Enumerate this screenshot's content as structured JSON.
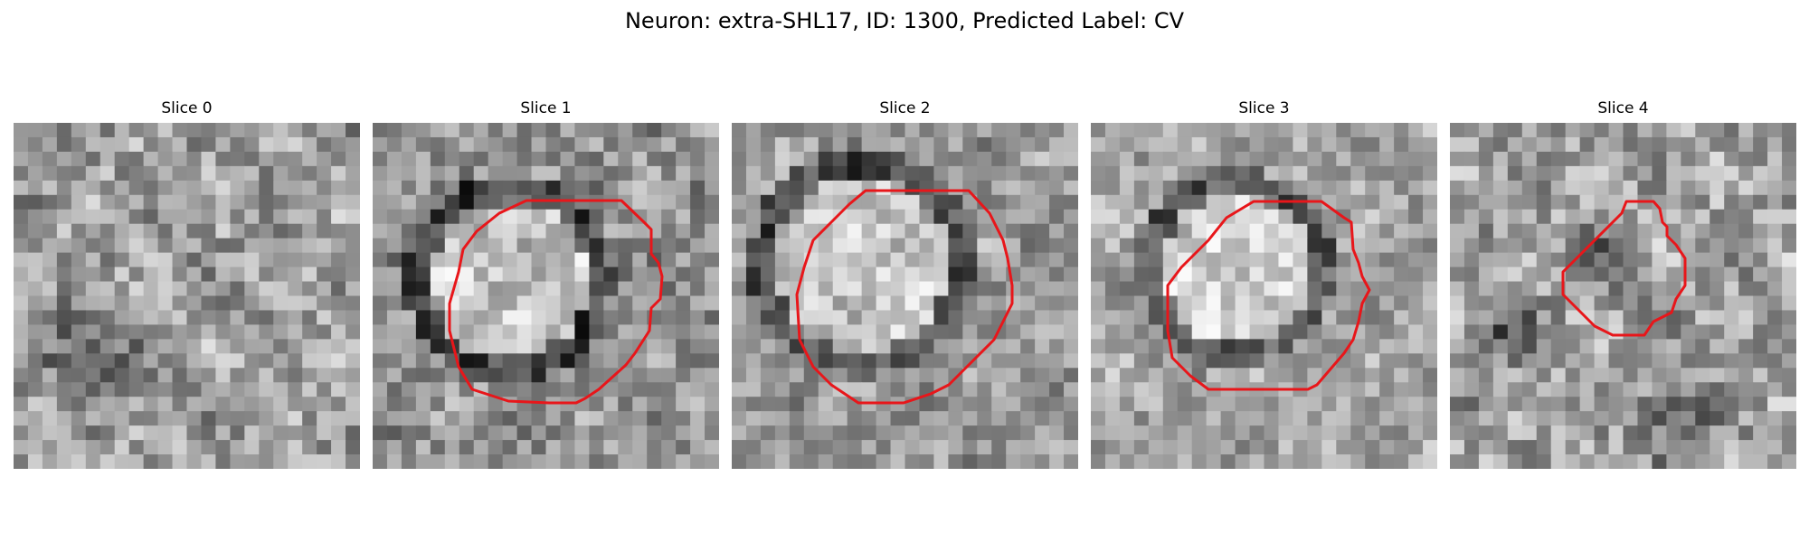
{
  "figure": {
    "title": "Neuron: extra-SHL17, ID: 1300, Predicted Label: CV"
  },
  "contour_color": "#e8161a",
  "slices": [
    {
      "label": "Slice 0",
      "contour": false
    },
    {
      "label": "Slice 1",
      "contour": true
    },
    {
      "label": "Slice 2",
      "contour": true
    },
    {
      "label": "Slice 3",
      "contour": true
    },
    {
      "label": "Slice 4",
      "contour": true
    }
  ]
}
